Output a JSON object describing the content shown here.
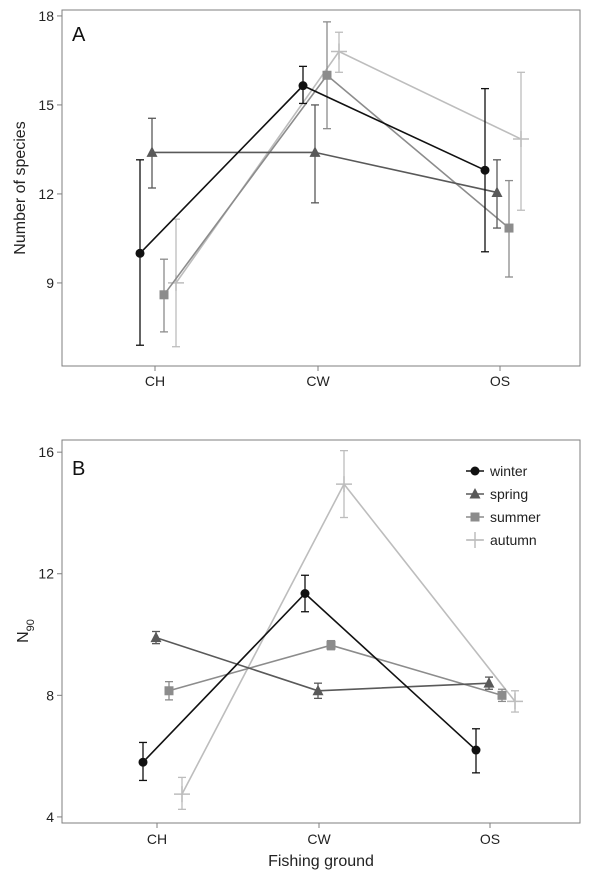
{
  "chart_data": [
    {
      "type": "line",
      "panel_label": "A",
      "title": "",
      "xlabel": "",
      "ylabel": "Number of species",
      "categories": [
        "CH",
        "CW",
        "OS"
      ],
      "ylim": [
        6.2,
        18.2
      ],
      "yticks": [
        9,
        12,
        15,
        18
      ],
      "grid": false,
      "series": [
        {
          "name": "winter",
          "color": "#111111",
          "marker": "circle",
          "values": [
            10.0,
            15.65,
            12.8
          ],
          "lower": [
            6.9,
            15.05,
            10.05
          ],
          "upper": [
            13.15,
            16.3,
            15.55
          ]
        },
        {
          "name": "spring",
          "color": "#595959",
          "marker": "triangle",
          "values": [
            13.4,
            13.4,
            12.05
          ],
          "lower": [
            12.2,
            11.7,
            10.85
          ],
          "upper": [
            14.55,
            15.0,
            13.15
          ]
        },
        {
          "name": "summer",
          "color": "#8c8c8c",
          "marker": "square",
          "values": [
            8.6,
            16.0,
            10.85
          ],
          "lower": [
            7.35,
            14.2,
            9.2
          ],
          "upper": [
            9.8,
            17.8,
            12.45
          ]
        },
        {
          "name": "autumn",
          "color": "#bdbdbd",
          "marker": "plus",
          "values": [
            9.0,
            16.8,
            13.85
          ],
          "lower": [
            6.85,
            16.1,
            11.45
          ],
          "upper": [
            11.15,
            17.45,
            16.1
          ]
        }
      ]
    },
    {
      "type": "line",
      "panel_label": "B",
      "title": "",
      "xlabel": "Fishing ground",
      "ylabel_main": "N",
      "ylabel_sub": "90",
      "categories": [
        "CH",
        "CW",
        "OS"
      ],
      "ylim": [
        3.8,
        16.4
      ],
      "yticks": [
        4,
        8,
        12,
        16
      ],
      "grid": false,
      "legend_position": "top-right",
      "series": [
        {
          "name": "winter",
          "color": "#111111",
          "marker": "circle",
          "values": [
            5.8,
            11.35,
            6.2
          ],
          "lower": [
            5.2,
            10.75,
            5.45
          ],
          "upper": [
            6.45,
            11.95,
            6.9
          ]
        },
        {
          "name": "spring",
          "color": "#595959",
          "marker": "triangle",
          "values": [
            9.9,
            8.15,
            8.4
          ],
          "lower": [
            9.7,
            7.9,
            8.2
          ],
          "upper": [
            10.1,
            8.4,
            8.6
          ]
        },
        {
          "name": "summer",
          "color": "#8c8c8c",
          "marker": "square",
          "values": [
            8.15,
            9.65,
            8.0
          ],
          "lower": [
            7.85,
            9.5,
            7.8
          ],
          "upper": [
            8.45,
            9.8,
            8.2
          ]
        },
        {
          "name": "autumn",
          "color": "#bdbdbd",
          "marker": "plus",
          "values": [
            4.75,
            14.95,
            7.8
          ],
          "lower": [
            4.25,
            13.85,
            7.45
          ],
          "upper": [
            5.3,
            16.05,
            8.15
          ]
        }
      ]
    }
  ]
}
